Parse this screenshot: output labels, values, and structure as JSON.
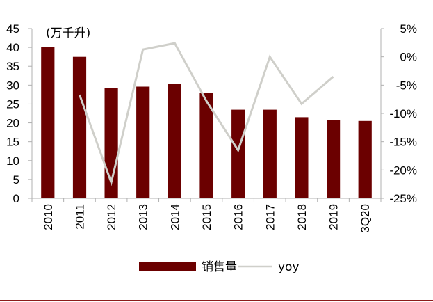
{
  "chart_data": {
    "type": "bar",
    "title": "",
    "unit_label": "(万千升)",
    "categories": [
      "2010",
      "2011",
      "2012",
      "2013",
      "2014",
      "2015",
      "2016",
      "2017",
      "2018",
      "2019",
      "3Q20"
    ],
    "series": [
      {
        "name": "销售量",
        "type": "bar",
        "axis": "left",
        "color": "#6b0000",
        "values": [
          40.2,
          37.5,
          29.2,
          29.6,
          30.4,
          28.0,
          23.5,
          23.5,
          21.5,
          20.8,
          20.5
        ]
      },
      {
        "name": "yoy",
        "type": "line",
        "axis": "right",
        "color": "#cfcfca",
        "values": [
          null,
          -6.7,
          -22.2,
          1.3,
          2.4,
          -7.8,
          -16.5,
          0.0,
          -8.3,
          -3.5,
          null
        ]
      }
    ],
    "left_axis": {
      "min": 0,
      "max": 45,
      "step": 5,
      "ticks": [
        "0",
        "5",
        "10",
        "15",
        "20",
        "25",
        "30",
        "35",
        "40",
        "45"
      ]
    },
    "right_axis": {
      "min": -25,
      "max": 5,
      "step": 5,
      "ticks": [
        "-25%",
        "-20%",
        "-15%",
        "-10%",
        "-5%",
        "0%",
        "5%"
      ]
    },
    "legend_position": "bottom",
    "grid": false,
    "colors": {
      "frame_rule": "#8b1a1a",
      "axis": "#b0b0b0"
    }
  }
}
